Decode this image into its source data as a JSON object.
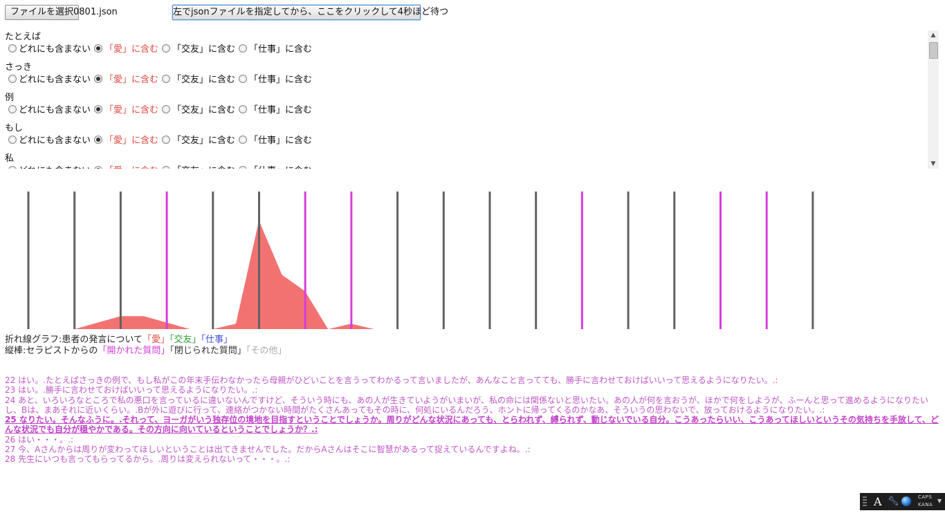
{
  "toolbar": {
    "file_button_label": "ファイルを選択",
    "file_name": "0801.json",
    "run_button_label": "左でjsonファイルを指定してから、ここをクリックして4秒ほど待つ"
  },
  "words": [
    {
      "label": "たとえば",
      "selected": 1
    },
    {
      "label": "さっき",
      "selected": 1
    },
    {
      "label": "例",
      "selected": 1
    },
    {
      "label": "もし",
      "selected": 1
    },
    {
      "label": "私",
      "selected": 1
    }
  ],
  "options": [
    "どれにも含まない",
    "「愛」に含む",
    "「交友」に含む",
    "「仕事」に含む"
  ],
  "chart_data": {
    "type": "area",
    "series": [
      {
        "name": "愛",
        "color": "#f27272",
        "values": [
          0,
          0,
          0,
          0,
          0.06,
          0.12,
          0.12,
          0.06,
          0,
          0,
          0.05,
          1.0,
          0.5,
          0.35,
          0,
          0.05,
          0,
          0,
          0,
          0
        ]
      }
    ],
    "verticals": [
      {
        "type": "closed"
      },
      {
        "type": "closed"
      },
      {
        "type": "closed"
      },
      {
        "type": "open"
      },
      {
        "type": "closed"
      },
      {
        "type": "closed"
      },
      {
        "type": "open"
      },
      {
        "type": "open"
      },
      {
        "type": "closed"
      },
      {
        "type": "closed"
      },
      {
        "type": "closed"
      },
      {
        "type": "closed"
      },
      {
        "type": "open"
      },
      {
        "type": "closed"
      },
      {
        "type": "closed"
      },
      {
        "type": "open"
      },
      {
        "type": "open"
      },
      {
        "type": "closed"
      }
    ],
    "colors": {
      "open": "#d83cdc",
      "closed": "#616161",
      "fill": "#f27272"
    }
  },
  "legend": {
    "line1_prefix": "折れ線グラフ:患者の発言について",
    "love": "「愛」",
    "friend": "「交友」",
    "work": "「仕事」",
    "line2_prefix": "縦棒:セラピストからの",
    "open": "「開かれた質問」",
    "closed": "「閉じられた質問」",
    "other": "「その他」"
  },
  "transcript": [
    {
      "text": "22 はい。.たとえばさっきの例で、もし私がこの年末手伝わなかったら母親がひどいことを言うってわかるって言いましたが、あんなこと言ってても、勝手に言わせておけばいいって思えるようになりたい。.:",
      "highlight": false,
      "wrap": false
    },
    {
      "text": "23 はい。.勝手に言わせておけばいいって思えるようになりたい。.:",
      "highlight": false,
      "wrap": false
    },
    {
      "text": "24 あと、いろいろなところで私の悪口を言っているに違いないんですけど、そういう時にも、あの人が生きていようがいまいが、私の命には関係ないと思いたい。あの人が何を言おうが、ほかで何をしようが、ふーんと思って進めるようになりたいし、Bは、まあそれに近いくらい。.Bが外に遊びに行って、連絡がつかない時間がたくさんあってもその時に、何処にいるんだろう、ホントに帰ってくるのかなあ、そういうの思わないで、放っておけるようになりたい。.:",
      "highlight": false,
      "wrap": true
    },
    {
      "text": "25 なりたい。そんなふうに。.それって、ヨーガがいう独存位の境地を目指すということでしょうか。周りがどんな状況にあっても、とらわれず、縛られず、動じないでいる自分。こうあったらいい、こうあってほしいというその気持ちを手放して、どんな状況でも自分が穏やかである。その方向に向いているということでしょうか？.:",
      "highlight": true,
      "wrap": true
    },
    {
      "text": "26 はい・・・。.:",
      "highlight": false,
      "wrap": false
    },
    {
      "text": "27 今、Aさんからは周りが変わってほしいということは出てきませんでした。だからAさんはそこに智慧があるって捉えているんですよね。.:",
      "highlight": false,
      "wrap": false
    },
    {
      "text": "28 先生にいつも言ってもらってるから。.周りは変えられないって・・・。.:",
      "highlight": false,
      "wrap": false
    }
  ],
  "langbar": {
    "ime_label": "A",
    "caps": "CAPS",
    "kana": "KANA"
  }
}
